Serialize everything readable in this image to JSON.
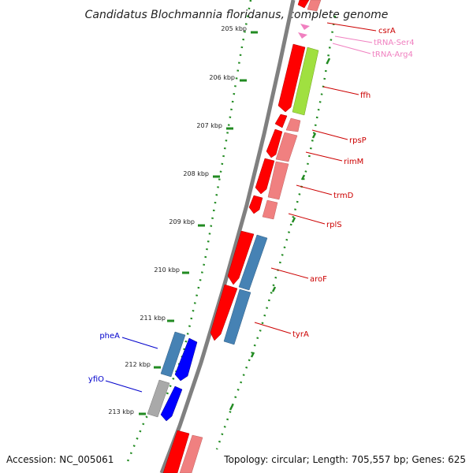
{
  "title": "Candidatus Blochmannia floridanus, complete genome",
  "footer": {
    "accession": "Accession: NC_005061",
    "topology": "Topology: circular; Length: 705,557 bp; Genes: 625"
  },
  "ticks": [
    "205 kbp",
    "206 kbp",
    "207 kbp",
    "208 kbp",
    "209 kbp",
    "210 kbp",
    "211 kbp",
    "212 kbp",
    "213 kbp"
  ],
  "genes_right": [
    "csrA",
    "tRNA-Ser4",
    "tRNA-Arg4",
    "ffh",
    "rpsP",
    "rimM",
    "trmD",
    "rplS",
    "aroF",
    "tyrA"
  ],
  "genes_left": [
    "pheA",
    "yfiO"
  ],
  "colors": {
    "cds_forward": "#ff0000",
    "cds_forward_light": "#f08080",
    "trna": "#f080c0",
    "ffh_highlight": "#a0e040",
    "cds_reverse_blue": "#0000ff",
    "cds_reverse_steel": "#4682b4",
    "unknown_gray": "#a9a9a9",
    "tick_green": "#228b22",
    "backbone": "#808080"
  }
}
